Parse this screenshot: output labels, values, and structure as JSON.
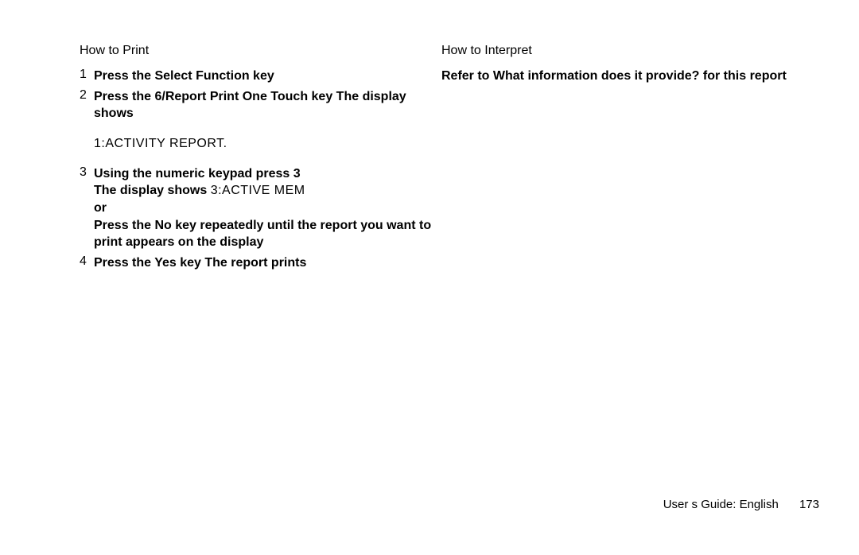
{
  "left": {
    "heading": "How to Print",
    "step1": {
      "num": "1",
      "text": "Press the Select Function key"
    },
    "step2": {
      "num": "2",
      "text": "Press the 6/Report Print One Touch key  The display shows"
    },
    "display1": "1:ACTIVITY REPORT.",
    "step3": {
      "num": "3",
      "line1": "Using the numeric keypad  press 3",
      "line2a": "The display shows ",
      "line2b": "3:ACTIVE MEM",
      "line3": "or",
      "line4": "Press the No   key repeatedly until the report you want to print appears on the display"
    },
    "step4": {
      "num": "4",
      "text": "Press the Yes   key  The report prints"
    }
  },
  "right": {
    "heading": "How to Interpret",
    "text": "Refer to   What information does it provide?   for this report"
  },
  "footer": {
    "label": "User s Guide: English",
    "page": "173"
  }
}
